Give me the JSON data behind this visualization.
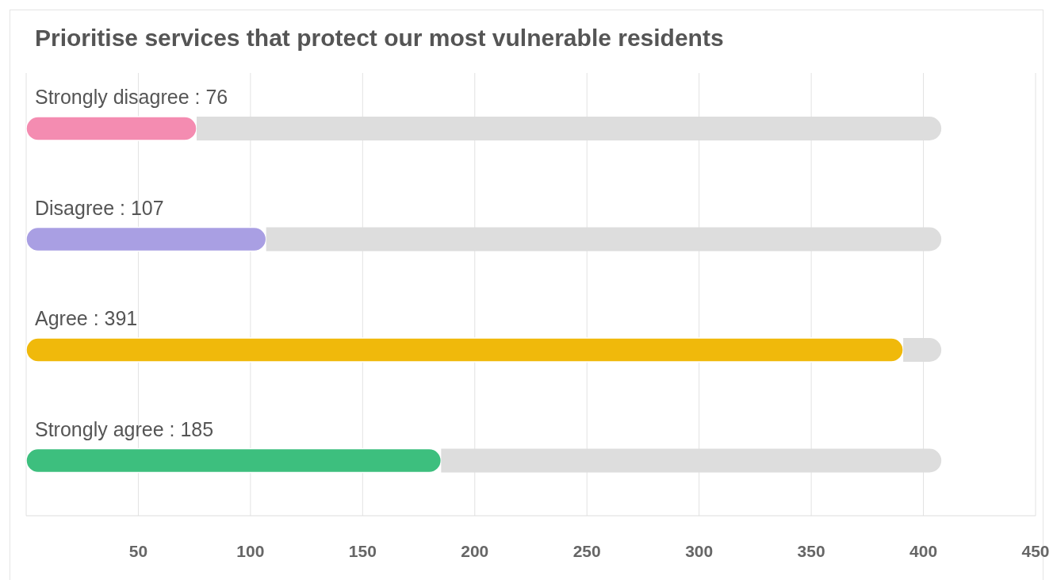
{
  "chart_data": {
    "type": "bar",
    "orientation": "horizontal",
    "stacked": true,
    "title": "Prioritise services that protect our most vulnerable residents",
    "categories": [
      "Strongly disagree : 76",
      "Disagree : 107",
      "Agree : 391",
      "Strongly agree : 185"
    ],
    "series": [
      {
        "colors": [
          "#f48cb1",
          "#a99fe3",
          "#f0b90b",
          "#3dbf7e"
        ],
        "values": [
          76,
          107,
          391,
          185
        ]
      },
      {
        "color": "#dddddd",
        "values": [
          332,
          301,
          17,
          223
        ]
      }
    ],
    "xlim": [
      0,
      450
    ],
    "xticks": [
      50,
      100,
      150,
      200,
      250,
      300,
      350,
      400,
      450
    ],
    "grid": "x"
  }
}
